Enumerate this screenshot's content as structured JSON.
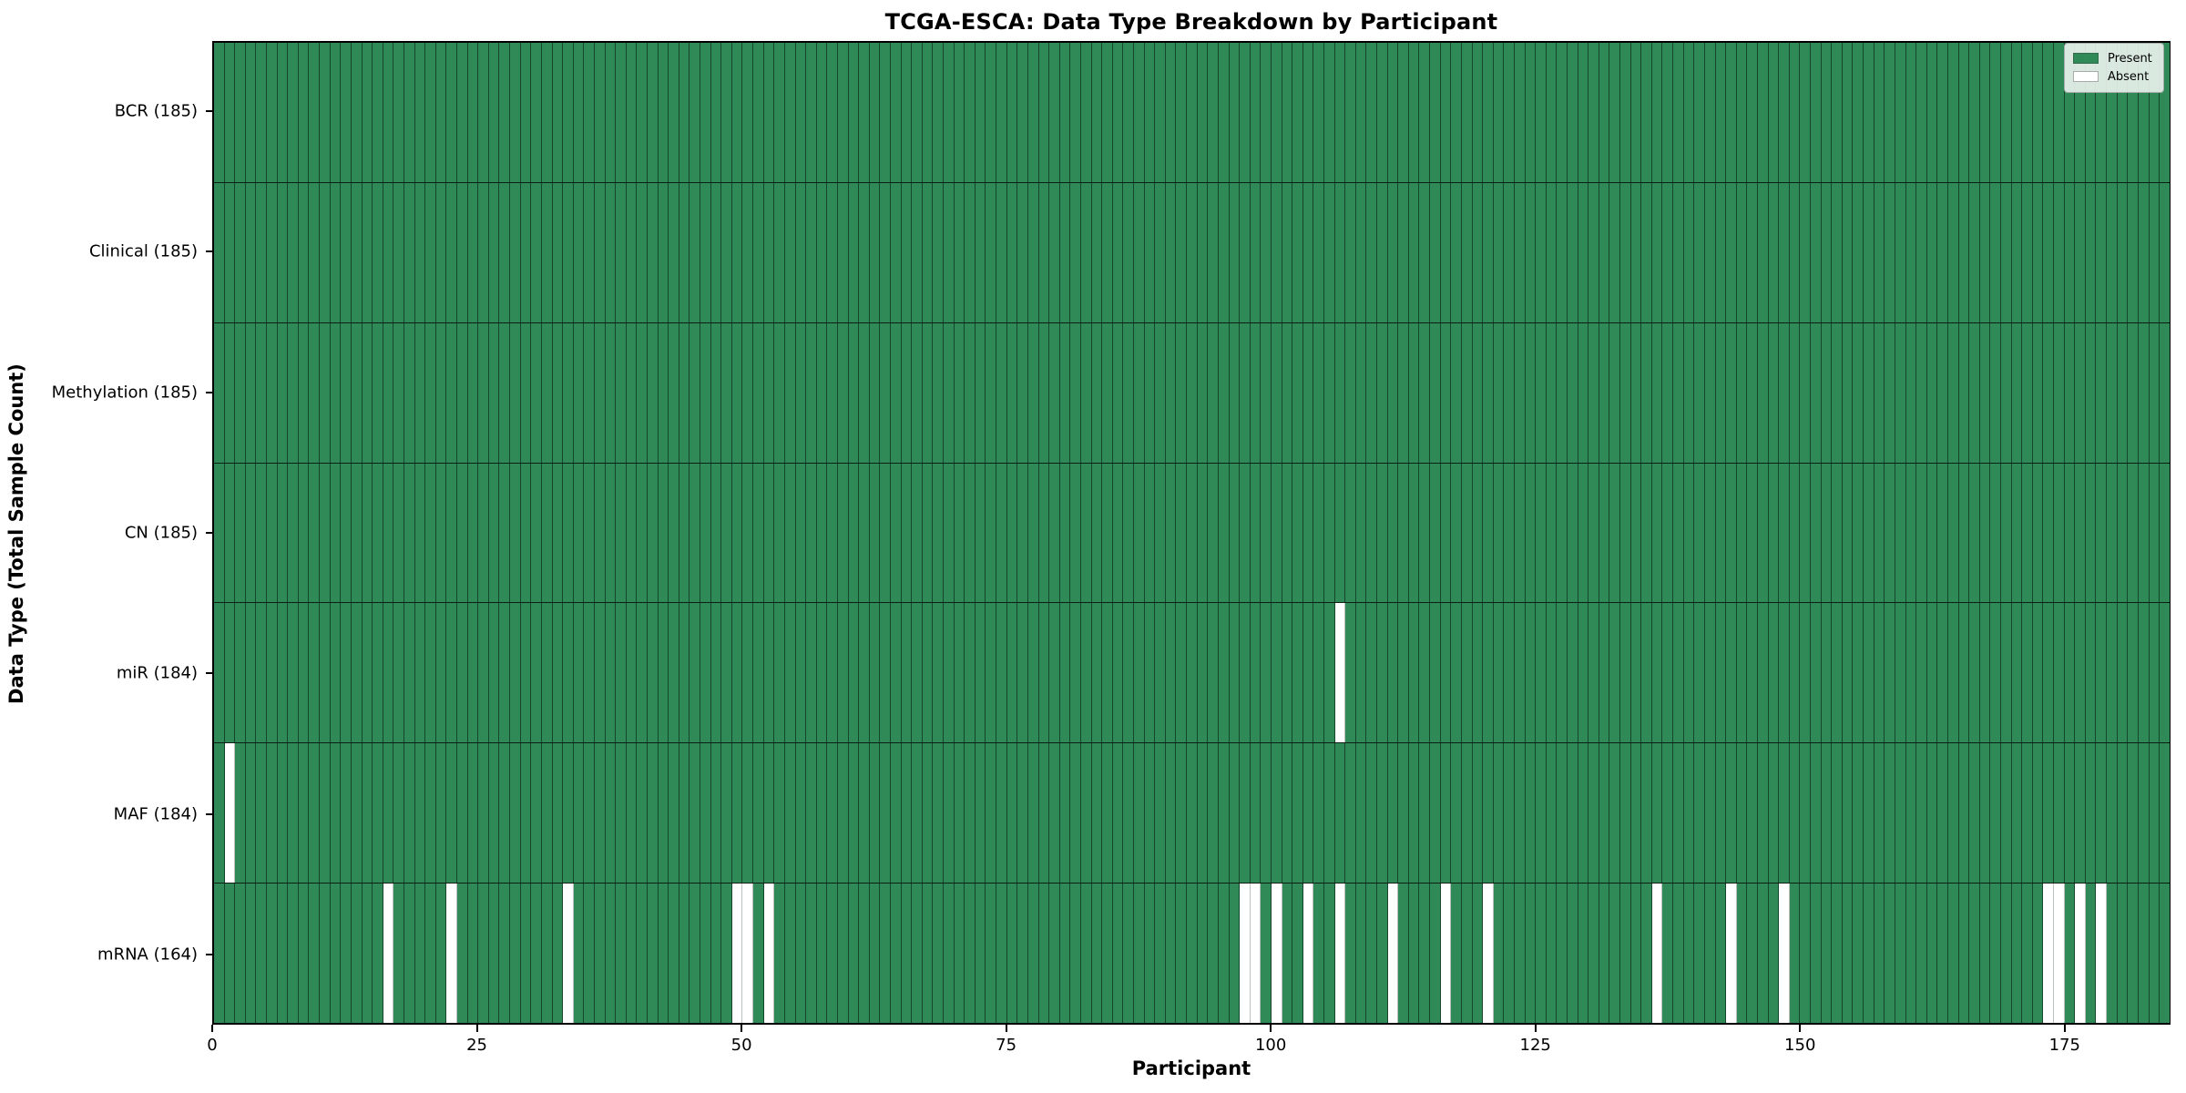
{
  "chart_data": {
    "type": "heatmap",
    "title": "TCGA-ESCA: Data Type Breakdown by Participant",
    "xlabel": "Participant",
    "ylabel": "Data Type (Total Sample Count)",
    "n_participants": 185,
    "x_axis_range": [
      0,
      185
    ],
    "x_ticks": [
      0,
      25,
      50,
      75,
      100,
      125,
      150,
      175
    ],
    "grid": "cell-edges",
    "legend_position": "upper-right-inside",
    "legend": [
      {
        "label": "Present",
        "color": "#2f8a58"
      },
      {
        "label": "Absent",
        "color": "#ffffff"
      }
    ],
    "rows": [
      {
        "label": "BCR (185)",
        "data_type": "BCR",
        "present_count": 185,
        "absent_participants": []
      },
      {
        "label": "Clinical (185)",
        "data_type": "Clinical",
        "present_count": 185,
        "absent_participants": []
      },
      {
        "label": "Methylation (185)",
        "data_type": "Methylation",
        "present_count": 185,
        "absent_participants": []
      },
      {
        "label": "CN (185)",
        "data_type": "CN",
        "present_count": 185,
        "absent_participants": []
      },
      {
        "label": "miR (184)",
        "data_type": "miR",
        "present_count": 184,
        "absent_participants": [
          106
        ]
      },
      {
        "label": "MAF (184)",
        "data_type": "MAF",
        "present_count": 184,
        "absent_participants": [
          1
        ]
      },
      {
        "label": "mRNA (164)",
        "data_type": "mRNA",
        "present_count": 164,
        "absent_participants": [
          16,
          22,
          33,
          49,
          50,
          52,
          97,
          98,
          100,
          103,
          106,
          111,
          116,
          120,
          136,
          143,
          148,
          173,
          174,
          176,
          178
        ]
      }
    ]
  }
}
